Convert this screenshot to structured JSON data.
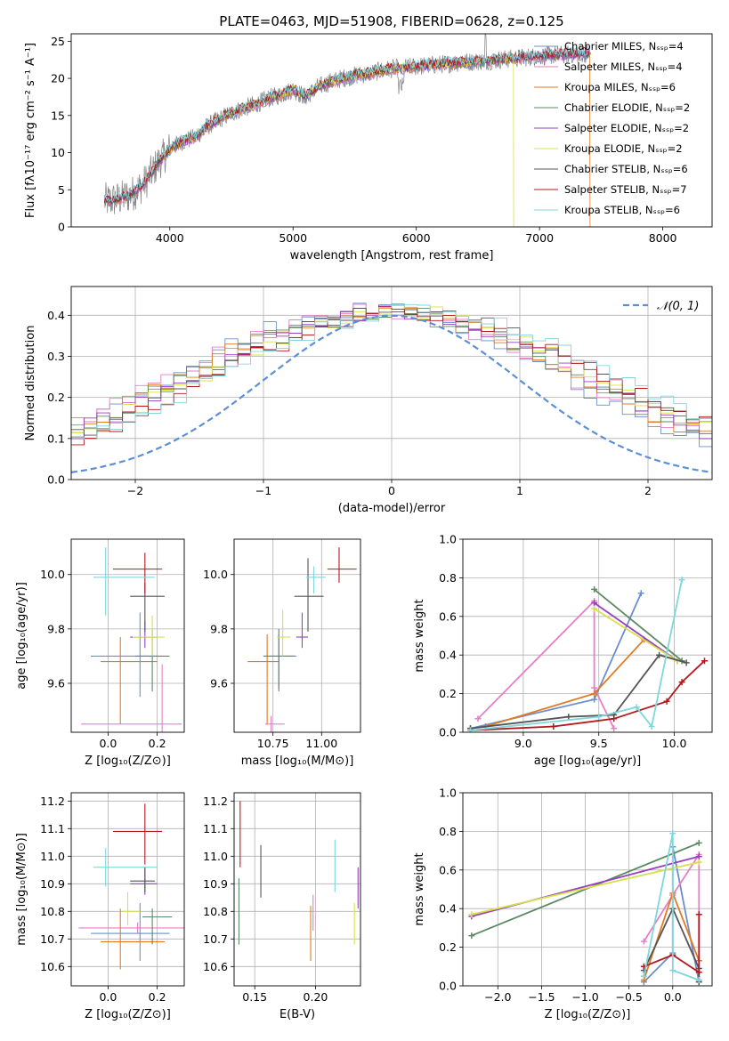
{
  "chart_data": [
    {
      "id": "spectrum",
      "type": "line",
      "title": "PLATE=0463, MJD=51908, FIBERID=0628, z=0.125",
      "xlabel": "wavelength [Angstrom, rest frame]",
      "ylabel": "Flux [fλ10⁻¹⁷ erg cm⁻² s⁻¹ A⁻¹]",
      "xlim": [
        3200,
        8400
      ],
      "ylim": [
        0,
        26
      ],
      "xticks": [
        4000,
        5000,
        6000,
        7000,
        8000
      ],
      "yticks": [
        0,
        5,
        10,
        15,
        20,
        25
      ],
      "grid": false,
      "legend_position": "top-right",
      "continuum": {
        "x": [
          3400,
          3500,
          3600,
          3700,
          3800,
          3900,
          4000,
          4100,
          4200,
          4300,
          4400,
          4500,
          4600,
          4700,
          4800,
          4900,
          5000,
          5100,
          5200,
          5300,
          5400,
          5500,
          5600,
          5700,
          5800,
          5900,
          6000,
          6200,
          6400,
          6600,
          6800,
          7000,
          7200,
          7400
        ],
        "y": [
          3.6,
          3.5,
          3.8,
          4.5,
          6.0,
          8.5,
          10.5,
          11.5,
          12.0,
          13.5,
          14.5,
          15.3,
          16.0,
          16.5,
          17.3,
          17.8,
          18.5,
          17.5,
          18.8,
          19.5,
          20.0,
          20.4,
          20.6,
          21.0,
          21.3,
          21.4,
          21.6,
          21.9,
          22.2,
          22.4,
          22.7,
          23.0,
          23.2,
          23.4
        ]
      },
      "series": [
        {
          "name": "Chabrier MILES, N_SSP=4",
          "color": "#6a8fd0"
        },
        {
          "name": "Salpeter MILES, N_SSP=4",
          "color": "#e67fc7"
        },
        {
          "name": "Kroupa MILES, N_SSP=6",
          "color": "#e07b22"
        },
        {
          "name": "Chabrier ELODIE, N_SSP=2",
          "color": "#5b8a63"
        },
        {
          "name": "Salpeter ELODIE, N_SSP=2",
          "color": "#9a3fbf"
        },
        {
          "name": "Kroupa ELODIE, N_SSP=2",
          "color": "#d7e04a"
        },
        {
          "name": "Chabrier STELIB, N_SSP=6",
          "color": "#555555"
        },
        {
          "name": "Salpeter STELIB, N_SSP=7",
          "color": "#b5171d"
        },
        {
          "name": "Kroupa STELIB, N_SSP=6",
          "color": "#7fd6dd"
        }
      ]
    },
    {
      "id": "residuals",
      "type": "histogram",
      "xlabel": "(data-model)/error",
      "ylabel": "Normed distribution",
      "xlim": [
        -2.5,
        2.5
      ],
      "ylim": [
        0,
        0.47
      ],
      "xticks": [
        -2,
        -1,
        0,
        1,
        2
      ],
      "yticks": [
        0.0,
        0.1,
        0.2,
        0.3,
        0.4
      ],
      "grid": true,
      "legend_position": "top-right",
      "reference": {
        "name": "𝒩(0, 1)",
        "mean": 0,
        "sigma": 1,
        "color": "#5b8fd6",
        "style": "dashed"
      },
      "series_colors": [
        "#6a8fd0",
        "#e67fc7",
        "#e07b22",
        "#5b8a63",
        "#9a3fbf",
        "#d7e04a",
        "#555555",
        "#b5171d",
        "#7fd6dd"
      ],
      "bin_width": 0.1,
      "width_factor": 1.55,
      "peak_height": 0.41
    },
    {
      "id": "age-vs-Z",
      "type": "errorbar",
      "xlabel": "Z [log₁₀(Z/Z⊙)]",
      "ylabel": "age  [log₁₀(age/yr)]",
      "xlim": [
        -0.15,
        0.31
      ],
      "ylim": [
        9.42,
        10.13
      ],
      "xticks": [
        0.0,
        0.2
      ],
      "yticks": [
        9.6,
        9.8,
        10.0
      ],
      "grid": true,
      "points": [
        {
          "color": "#6a8fd0",
          "x": 0.13,
          "xerr": [
            0.2,
            0.07
          ],
          "y": 9.7,
          "yerr": [
            0.15,
            0.16
          ]
        },
        {
          "color": "#e67fc7",
          "x": 0.22,
          "xerr": [
            0.33,
            0.08
          ],
          "y": 9.45,
          "yerr": [
            0.03,
            0.22
          ]
        },
        {
          "color": "#e07b22",
          "x": 0.05,
          "xerr": [
            0.08,
            0.15
          ],
          "y": 9.68,
          "yerr": [
            0.23,
            0.09
          ]
        },
        {
          "color": "#5b8a63",
          "x": 0.18,
          "xerr": [
            0.07,
            0.07
          ],
          "y": 9.7,
          "yerr": [
            0.13,
            0.1
          ]
        },
        {
          "color": "#9a3fbf",
          "x": 0.15,
          "xerr": [
            0.06,
            0.05
          ],
          "y": 9.77,
          "yerr": [
            0.04,
            0.06
          ]
        },
        {
          "color": "#d7e04a",
          "x": 0.18,
          "xerr": [
            0.08,
            0.05
          ],
          "y": 9.77,
          "yerr": [
            0.07,
            0.08
          ]
        },
        {
          "color": "#555555",
          "x": 0.15,
          "xerr": [
            0.06,
            0.08
          ],
          "y": 9.92,
          "yerr": [
            0.13,
            0.05
          ]
        },
        {
          "color": "#b5171d",
          "x": 0.15,
          "xerr": [
            0.13,
            0.07
          ],
          "y": 10.02,
          "yerr": [
            0.09,
            0.06
          ]
        },
        {
          "color": "#7fd6dd",
          "x": -0.01,
          "xerr": [
            0.05,
            0.2
          ],
          "y": 9.99,
          "yerr": [
            0.14,
            0.11
          ]
        }
      ]
    },
    {
      "id": "age-vs-mass",
      "type": "errorbar",
      "xlabel": "mass [log₁₀(M/M⊙)]",
      "ylabel": "",
      "xlim": [
        10.55,
        11.2
      ],
      "ylim": [
        9.42,
        10.13
      ],
      "xticks": [
        10.75,
        11.0
      ],
      "yticks": [
        9.6,
        9.8,
        10.0
      ],
      "grid": true,
      "points": [
        {
          "color": "#6a8fd0",
          "x": 10.78,
          "xerr": [
            0.07,
            0.09
          ],
          "y": 9.7,
          "yerr": [
            0.12,
            0.08
          ]
        },
        {
          "color": "#e67fc7",
          "x": 10.74,
          "xerr": [
            0.03,
            0.07
          ],
          "y": 9.45,
          "yerr": [
            0.03,
            0.03
          ]
        },
        {
          "color": "#e07b22",
          "x": 10.72,
          "xerr": [
            0.1,
            0.06
          ],
          "y": 9.68,
          "yerr": [
            0.23,
            0.1
          ]
        },
        {
          "color": "#5b8a63",
          "x": 10.78,
          "xerr": [
            0.08,
            0.08
          ],
          "y": 9.7,
          "yerr": [
            0.13,
            0.1
          ]
        },
        {
          "color": "#9a3fbf",
          "x": 10.9,
          "xerr": [
            0.03,
            0.03
          ],
          "y": 9.77,
          "yerr": [
            0.04,
            0.09
          ]
        },
        {
          "color": "#d7e04a",
          "x": 10.8,
          "xerr": [
            0.03,
            0.04
          ],
          "y": 9.77,
          "yerr": [
            0.07,
            0.1
          ]
        },
        {
          "color": "#555555",
          "x": 10.93,
          "xerr": [
            0.07,
            0.08
          ],
          "y": 9.92,
          "yerr": [
            0.13,
            0.14
          ]
        },
        {
          "color": "#b5171d",
          "x": 11.09,
          "xerr": [
            0.06,
            0.09
          ],
          "y": 10.02,
          "yerr": [
            0.05,
            0.08
          ]
        },
        {
          "color": "#7fd6dd",
          "x": 10.96,
          "xerr": [
            0.04,
            0.06
          ],
          "y": 9.99,
          "yerr": [
            0.06,
            0.04
          ]
        }
      ]
    },
    {
      "id": "weight-vs-age",
      "type": "line",
      "xlabel": "age  [log₁₀(age/yr)]",
      "ylabel": "mass weight",
      "xlim": [
        8.6,
        10.25
      ],
      "ylim": [
        0,
        1
      ],
      "xticks": [
        9.0,
        9.5,
        10.0
      ],
      "yticks": [
        0.0,
        0.2,
        0.4,
        0.6,
        0.8,
        1.0
      ],
      "grid": true,
      "series": [
        {
          "color": "#6a8fd0",
          "x": [
            8.65,
            9.47,
            9.78
          ],
          "y": [
            0.02,
            0.17,
            0.72
          ]
        },
        {
          "color": "#e67fc7",
          "x": [
            8.7,
            9.47,
            9.47,
            9.6
          ],
          "y": [
            0.07,
            0.68,
            0.23,
            0.02
          ]
        },
        {
          "color": "#e07b22",
          "x": [
            8.75,
            9.47,
            9.8
          ],
          "y": [
            0.03,
            0.2,
            0.48
          ]
        },
        {
          "color": "#5b8a63",
          "x": [
            9.47,
            10.05
          ],
          "y": [
            0.74,
            0.37
          ]
        },
        {
          "color": "#9a3fbf",
          "x": [
            9.47,
            10.02
          ],
          "y": [
            0.67,
            0.37
          ]
        },
        {
          "color": "#d7e04a",
          "x": [
            9.47,
            10.02
          ],
          "y": [
            0.64,
            0.37
          ]
        },
        {
          "color": "#555555",
          "x": [
            8.65,
            9.3,
            9.6,
            9.9,
            10.08
          ],
          "y": [
            0.02,
            0.08,
            0.09,
            0.4,
            0.36
          ]
        },
        {
          "color": "#b5171d",
          "x": [
            8.65,
            9.2,
            9.6,
            9.95,
            10.05,
            10.2
          ],
          "y": [
            0.01,
            0.03,
            0.07,
            0.16,
            0.26,
            0.37
          ]
        },
        {
          "color": "#7fd6dd",
          "x": [
            8.65,
            9.5,
            9.75,
            9.85,
            10.05
          ],
          "y": [
            0.01,
            0.08,
            0.13,
            0.03,
            0.79
          ]
        }
      ]
    },
    {
      "id": "mass-vs-Z",
      "type": "errorbar",
      "xlabel": "Z [log₁₀(Z/Z⊙)]",
      "ylabel": "mass [log₁₀(M/M⊙)]",
      "xlim": [
        -0.15,
        0.31
      ],
      "ylim": [
        10.53,
        11.23
      ],
      "xticks": [
        0.0,
        0.2
      ],
      "yticks": [
        10.6,
        10.7,
        10.8,
        10.9,
        11.0,
        11.1,
        11.2
      ],
      "grid": true,
      "points": [
        {
          "color": "#6a8fd0",
          "x": 0.13,
          "xerr": [
            0.2,
            0.12
          ],
          "y": 10.72,
          "yerr": [
            0.1,
            0.11
          ]
        },
        {
          "color": "#e67fc7",
          "x": 0.12,
          "xerr": [
            0.24,
            0.19
          ],
          "y": 10.74,
          "yerr": [
            0.02,
            0.02
          ]
        },
        {
          "color": "#e07b22",
          "x": 0.05,
          "xerr": [
            0.08,
            0.18
          ],
          "y": 10.69,
          "yerr": [
            0.1,
            0.12
          ]
        },
        {
          "color": "#5b8a63",
          "x": 0.18,
          "xerr": [
            0.04,
            0.08
          ],
          "y": 10.78,
          "yerr": [
            0.1,
            0.03
          ]
        },
        {
          "color": "#9a3fbf",
          "x": 0.15,
          "xerr": [
            0.06,
            0.05
          ],
          "y": 10.9,
          "yerr": [
            0.04,
            0.06
          ]
        },
        {
          "color": "#d7e04a",
          "x": 0.08,
          "xerr": [
            0.02,
            0.05
          ],
          "y": 10.8,
          "yerr": [
            0.05,
            0.07
          ]
        },
        {
          "color": "#555555",
          "x": 0.15,
          "xerr": [
            0.06,
            0.04
          ],
          "y": 10.91,
          "yerr": [
            0.04,
            0.05
          ]
        },
        {
          "color": "#b5171d",
          "x": 0.15,
          "xerr": [
            0.13,
            0.07
          ],
          "y": 11.09,
          "yerr": [
            0.12,
            0.1
          ]
        },
        {
          "color": "#7fd6dd",
          "x": -0.01,
          "xerr": [
            0.05,
            0.21
          ],
          "y": 10.96,
          "yerr": [
            0.07,
            0.07
          ]
        }
      ]
    },
    {
      "id": "mass-vs-EBV",
      "type": "errorbar",
      "xlabel": "E(B-V)",
      "ylabel": "",
      "xlim": [
        0.133,
        0.237
      ],
      "ylim": [
        10.53,
        11.23
      ],
      "xticks": [
        0.15,
        0.2
      ],
      "yticks": [
        10.6,
        10.7,
        10.8,
        10.9,
        11.0,
        11.1,
        11.2
      ],
      "grid": true,
      "points": [
        {
          "color": "#e67fc7",
          "x": 0.198,
          "xerr": [
            0,
            0
          ],
          "y": 10.78,
          "yerr": [
            0.05,
            0.08
          ]
        },
        {
          "color": "#e07b22",
          "x": 0.196,
          "xerr": [
            0,
            0
          ],
          "y": 10.72,
          "yerr": [
            0.1,
            0.1
          ]
        },
        {
          "color": "#5b8a63",
          "x": 0.137,
          "xerr": [
            0,
            0
          ],
          "y": 10.8,
          "yerr": [
            0.12,
            0.12
          ]
        },
        {
          "color": "#9a3fbf",
          "x": 0.235,
          "xerr": [
            0,
            0
          ],
          "y": 10.88,
          "yerr": [
            0.07,
            0.08
          ]
        },
        {
          "color": "#d7e04a",
          "x": 0.232,
          "xerr": [
            0,
            0
          ],
          "y": 10.76,
          "yerr": [
            0.08,
            0.07
          ]
        },
        {
          "color": "#555555",
          "x": 0.155,
          "xerr": [
            0,
            0
          ],
          "y": 10.97,
          "yerr": [
            0.12,
            0.07
          ]
        },
        {
          "color": "#b5171d",
          "x": 0.138,
          "xerr": [
            0,
            0
          ],
          "y": 11.08,
          "yerr": [
            0.12,
            0.12
          ]
        },
        {
          "color": "#7fd6dd",
          "x": 0.216,
          "xerr": [
            0,
            0
          ],
          "y": 10.96,
          "yerr": [
            0.09,
            0.1
          ]
        }
      ]
    },
    {
      "id": "weight-vs-Z",
      "type": "line",
      "xlabel": "Z [log₁₀(Z/Z⊙)]",
      "ylabel": "mass weight",
      "xlim": [
        -2.4,
        0.45
      ],
      "ylim": [
        0,
        1
      ],
      "xticks": [
        -2.0,
        -1.5,
        -1.0,
        -0.5,
        0.0
      ],
      "yticks": [
        0.0,
        0.2,
        0.4,
        0.6,
        0.8,
        1.0
      ],
      "grid": true,
      "series": [
        {
          "color": "#6a8fd0",
          "x": [
            -0.33,
            0.0,
            0.0,
            0.3
          ],
          "y": [
            0.02,
            0.17,
            0.72,
            0.02
          ]
        },
        {
          "color": "#e67fc7",
          "x": [
            -0.33,
            0.0,
            0.3,
            0.3
          ],
          "y": [
            0.23,
            0.47,
            0.68,
            0.03
          ]
        },
        {
          "color": "#e07b22",
          "x": [
            -0.33,
            0.0,
            0.3
          ],
          "y": [
            0.03,
            0.48,
            0.13
          ]
        },
        {
          "color": "#5b8a63",
          "x": [
            -2.3,
            0.3
          ],
          "y": [
            0.26,
            0.74
          ]
        },
        {
          "color": "#9a3fbf",
          "x": [
            -2.3,
            0.3
          ],
          "y": [
            0.36,
            0.67
          ]
        },
        {
          "color": "#d7e04a",
          "x": [
            -2.3,
            0.3
          ],
          "y": [
            0.37,
            0.64
          ]
        },
        {
          "color": "#555555",
          "x": [
            -0.33,
            0.0,
            0.3,
            0.3
          ],
          "y": [
            0.08,
            0.4,
            0.09,
            0.02
          ]
        },
        {
          "color": "#b5171d",
          "x": [
            -0.33,
            0.0,
            0.3,
            0.3
          ],
          "y": [
            0.1,
            0.16,
            0.07,
            0.37
          ]
        },
        {
          "color": "#7fd6dd",
          "x": [
            -0.33,
            0.0,
            0.0,
            0.3
          ],
          "y": [
            0.05,
            0.79,
            0.08,
            0.03
          ]
        }
      ]
    }
  ]
}
